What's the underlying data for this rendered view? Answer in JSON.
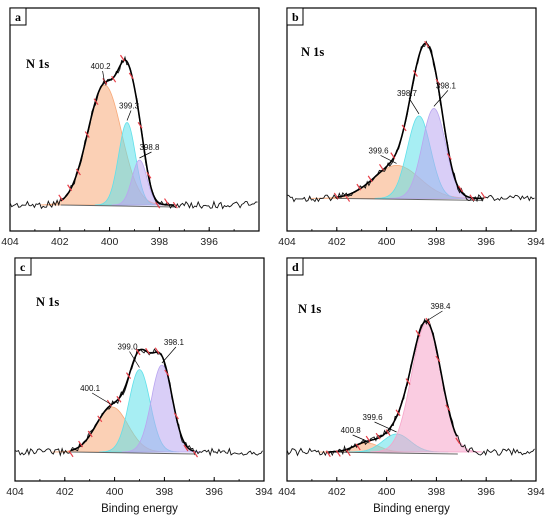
{
  "colors": {
    "raw": "#111111",
    "envelope": "#000000",
    "fit_marks": "#e8404a",
    "baseline": "#666666",
    "peak_orange": "#f7a979",
    "peak_cyan": "#5fe0ea",
    "peak_purple": "#b9a5f0",
    "peak_pink": "#f6a3c8"
  },
  "chart_data": [
    {
      "panel": "a",
      "type": "line",
      "title": "N 1s",
      "xlabel": "",
      "xlim": [
        404,
        394
      ],
      "x_ticks": [
        "404",
        "402",
        "400",
        "398",
        "396"
      ],
      "background": 0.1,
      "peaks": [
        {
          "label": "400.2",
          "center": 400.2,
          "height": 0.8,
          "fwhm": 1.6,
          "color": "peak_orange"
        },
        {
          "label": "399.3",
          "center": 399.3,
          "height": 0.55,
          "fwhm": 0.8,
          "color": "peak_cyan"
        },
        {
          "label": "398.8",
          "center": 398.8,
          "height": 0.3,
          "fwhm": 0.7,
          "color": "peak_purple"
        }
      ]
    },
    {
      "panel": "b",
      "type": "line",
      "title": "N 1s",
      "xlabel": "",
      "xlim": [
        404,
        394
      ],
      "x_ticks": [
        "404",
        "402",
        "400",
        "398",
        "396",
        "394"
      ],
      "background": 0.12,
      "peaks": [
        {
          "label": "399.6",
          "center": 399.6,
          "height": 0.22,
          "fwhm": 2.2,
          "color": "peak_orange"
        },
        {
          "label": "398.7",
          "center": 398.7,
          "height": 0.55,
          "fwhm": 1.1,
          "color": "peak_cyan"
        },
        {
          "label": "398.1",
          "center": 398.1,
          "height": 0.6,
          "fwhm": 1.1,
          "color": "peak_purple"
        }
      ]
    },
    {
      "panel": "c",
      "type": "line",
      "title": "N 1s",
      "xlabel": "Binding energy",
      "xlim": [
        404,
        394
      ],
      "x_ticks": [
        "404",
        "402",
        "400",
        "398",
        "396",
        "394"
      ],
      "background": 0.1,
      "peaks": [
        {
          "label": "400.1",
          "center": 400.1,
          "height": 0.3,
          "fwhm": 1.5,
          "color": "peak_orange"
        },
        {
          "label": "399.0",
          "center": 399.0,
          "height": 0.55,
          "fwhm": 1.0,
          "color": "peak_cyan"
        },
        {
          "label": "398.1",
          "center": 398.1,
          "height": 0.58,
          "fwhm": 1.0,
          "color": "peak_purple"
        }
      ]
    },
    {
      "panel": "d",
      "type": "line",
      "title": "N 1s",
      "xlabel": "Binding energy",
      "xlim": [
        404,
        394
      ],
      "x_ticks": [
        "404",
        "402",
        "400",
        "398",
        "396",
        "394"
      ],
      "background": 0.1,
      "peaks": [
        {
          "label": "400.8",
          "center": 400.8,
          "height": 0.06,
          "fwhm": 1.2,
          "color": "peak_orange"
        },
        {
          "label": "399.6",
          "center": 399.6,
          "height": 0.12,
          "fwhm": 1.3,
          "color": "peak_cyan"
        },
        {
          "label": "398.4",
          "center": 398.4,
          "height": 0.86,
          "fwhm": 1.4,
          "color": "peak_pink"
        }
      ]
    }
  ]
}
